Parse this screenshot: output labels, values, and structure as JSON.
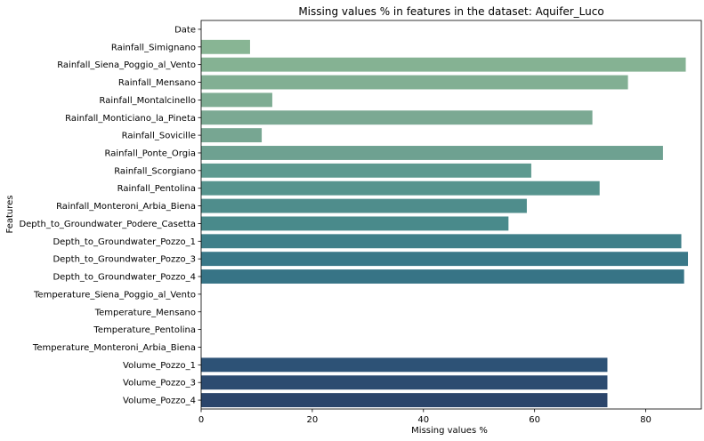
{
  "chart_data": {
    "type": "bar",
    "orientation": "horizontal",
    "title": "Missing values % in features in the dataset: Aquifer_Luco",
    "xlabel": "Missing values %",
    "ylabel": "Features",
    "xlim": [
      0,
      90
    ],
    "xticks": [
      0,
      20,
      40,
      60,
      80
    ],
    "grid": false,
    "categories": [
      "Date",
      "Rainfall_Simignano",
      "Rainfall_Siena_Poggio_al_Vento",
      "Rainfall_Mensano",
      "Rainfall_Montalcinello",
      "Rainfall_Monticiano_la_Pineta",
      "Rainfall_Sovicille",
      "Rainfall_Ponte_Orgia",
      "Rainfall_Scorgiano",
      "Rainfall_Pentolina",
      "Rainfall_Monteroni_Arbia_Biena",
      "Depth_to_Groundwater_Podere_Casetta",
      "Depth_to_Groundwater_Pozzo_1",
      "Depth_to_Groundwater_Pozzo_3",
      "Depth_to_Groundwater_Pozzo_4",
      "Temperature_Siena_Poggio_al_Vento",
      "Temperature_Mensano",
      "Temperature_Pentolina",
      "Temperature_Monteroni_Arbia_Biena",
      "Volume_Pozzo_1",
      "Volume_Pozzo_3",
      "Volume_Pozzo_4"
    ],
    "values": [
      0,
      8.8,
      87.2,
      76.8,
      12.8,
      70.4,
      10.9,
      83.1,
      59.4,
      71.7,
      58.6,
      55.3,
      86.4,
      87.6,
      86.9,
      0,
      0,
      0,
      0,
      73.1,
      73.1,
      73.1
    ],
    "colors": [
      "#8bb896",
      "#88b594",
      "#85b293",
      "#82af93",
      "#7eac93",
      "#7ba993",
      "#77a692",
      "#6ea191",
      "#5e9a90",
      "#57948e",
      "#4f8d8c",
      "#498a8b",
      "#3f7f89",
      "#3a7888",
      "#377486",
      "#336d84",
      "#316883",
      "#2f6381",
      "#2d5e7f",
      "#2d5276",
      "#2c4b70",
      "#2b456b"
    ]
  }
}
